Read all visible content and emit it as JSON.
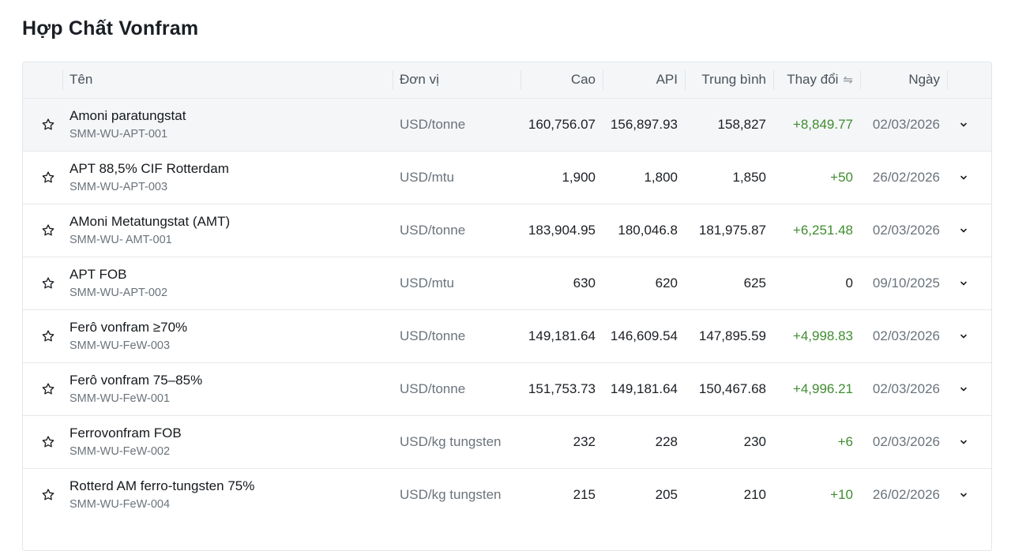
{
  "page": {
    "title": "Hợp Chất Vonfram"
  },
  "table": {
    "headers": {
      "name": "Tên",
      "unit": "Đơn vị",
      "high": "Cao",
      "api": "API",
      "avg": "Trung bình",
      "change": "Thay đổi",
      "date": "Ngày"
    },
    "sort_icon": "swap-arrows-icon",
    "rows": [
      {
        "name": "Amoni paratungstat",
        "code": "SMM-WU-APT-001",
        "unit": "USD/tonne",
        "high": "160,756.07",
        "api": "156,897.93",
        "avg": "158,827",
        "change": "+8,849.77",
        "change_positive": true,
        "date": "02/03/2026"
      },
      {
        "name": "APT 88,5% CIF Rotterdam",
        "code": "SMM-WU-APT-003",
        "unit": "USD/mtu",
        "high": "1,900",
        "api": "1,800",
        "avg": "1,850",
        "change": "+50",
        "change_positive": true,
        "date": "26/02/2026"
      },
      {
        "name": "AMoni Metatungstat (AMT)",
        "code": "SMM-WU- AMT-001",
        "unit": "USD/tonne",
        "high": "183,904.95",
        "api": "180,046.8",
        "avg": "181,975.87",
        "change": "+6,251.48",
        "change_positive": true,
        "date": "02/03/2026"
      },
      {
        "name": "APT FOB",
        "code": "SMM-WU-APT-002",
        "unit": "USD/mtu",
        "high": "630",
        "api": "620",
        "avg": "625",
        "change": "0",
        "change_positive": false,
        "date": "09/10/2025"
      },
      {
        "name": "Ferô vonfram ≥70%",
        "code": "SMM-WU-FeW-003",
        "unit": "USD/tonne",
        "high": "149,181.64",
        "api": "146,609.54",
        "avg": "147,895.59",
        "change": "+4,998.83",
        "change_positive": true,
        "date": "02/03/2026"
      },
      {
        "name": "Ferô vonfram 75–85%",
        "code": "SMM-WU-FeW-001",
        "unit": "USD/tonne",
        "high": "151,753.73",
        "api": "149,181.64",
        "avg": "150,467.68",
        "change": "+4,996.21",
        "change_positive": true,
        "date": "02/03/2026"
      },
      {
        "name": "Ferrovonfram FOB",
        "code": "SMM-WU-FeW-002",
        "unit": "USD/kg tungsten",
        "high": "232",
        "api": "228",
        "avg": "230",
        "change": "+6",
        "change_positive": true,
        "date": "02/03/2026"
      },
      {
        "name": "Rotterd AM ferro-tungsten 75%",
        "code": "SMM-WU-FeW-004",
        "unit": "USD/kg tungsten",
        "high": "215",
        "api": "205",
        "avg": "210",
        "change": "+10",
        "change_positive": true,
        "date": "26/02/2026"
      }
    ]
  },
  "colors": {
    "positive_change": "#3f8c2f",
    "hover_row": "#f5f6f8",
    "header_bg": "#f4f6f8"
  },
  "icons": {
    "row_star": "star-outline-icon",
    "row_expand": "chevron-down-icon"
  }
}
